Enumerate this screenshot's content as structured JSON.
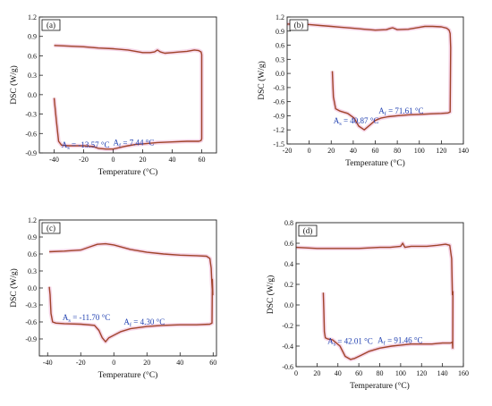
{
  "chart_data": [
    {
      "type": "line",
      "panel_label": "(a)",
      "xlabel": "Temperature (°C)",
      "ylabel": "DSC (W/g)",
      "xlim": [
        -50,
        70
      ],
      "ylim": [
        -0.9,
        1.2
      ],
      "xticks": [
        -40,
        -20,
        0,
        20,
        40,
        60
      ],
      "yticks": [
        -0.9,
        -0.6,
        -0.3,
        0.0,
        0.3,
        0.6,
        0.9,
        1.2
      ],
      "ytick_labels": [
        "-0.9",
        "-0.6",
        "-0.3",
        "0.0",
        "0.3",
        "0.6",
        "0.9",
        "1.2"
      ],
      "annotations": [
        {
          "text": "As = -13.57 °C",
          "main": "A",
          "sub": "s",
          "rest": " = -13.57 °C",
          "x": -35,
          "y": -0.82
        },
        {
          "text": "Af = 7.44 °C",
          "main": "A",
          "sub": "f",
          "rest": " = 7.44 °C",
          "x": 0,
          "y": -0.78
        }
      ],
      "series": [
        {
          "x": [
            -40,
            -38.5,
            -37,
            -35,
            -30,
            -20,
            -13.57,
            -10,
            -5,
            0,
            7.44,
            10,
            15,
            20,
            30,
            40,
            50,
            58,
            59.5,
            60,
            60,
            59.6,
            58,
            55,
            50,
            45,
            40,
            35,
            32,
            30,
            28,
            25,
            20,
            10,
            0,
            -10,
            -20,
            -30,
            -40
          ],
          "y": [
            -0.05,
            -0.4,
            -0.72,
            -0.78,
            -0.79,
            -0.79,
            -0.8,
            -0.83,
            -0.84,
            -0.84,
            -0.8,
            -0.79,
            -0.77,
            -0.76,
            -0.74,
            -0.73,
            -0.72,
            -0.72,
            -0.71,
            -0.68,
            0.62,
            0.66,
            0.68,
            0.69,
            0.67,
            0.66,
            0.65,
            0.64,
            0.66,
            0.69,
            0.66,
            0.65,
            0.65,
            0.69,
            0.71,
            0.72,
            0.74,
            0.75,
            0.76
          ]
        }
      ]
    },
    {
      "type": "line",
      "panel_label": "(b)",
      "xlabel": "Temperature (°C)",
      "ylabel": "DSC (W/g)",
      "xlim": [
        -20,
        140
      ],
      "ylim": [
        -1.5,
        1.2
      ],
      "xticks": [
        -20,
        0,
        20,
        40,
        60,
        80,
        100,
        120,
        140
      ],
      "yticks": [
        -1.5,
        -1.2,
        -0.9,
        -0.6,
        -0.3,
        0.0,
        0.3,
        0.6,
        0.9,
        1.2
      ],
      "ytick_labels": [
        "-1.5",
        "-1.2",
        "-0.9",
        "-0.6",
        "-0.3",
        "0.0",
        "0.3",
        "0.6",
        "0.9",
        "1.2"
      ],
      "annotations": [
        {
          "text": "As = 40.87 °C",
          "main": "A",
          "sub": "s",
          "rest": " = 40.87 °C",
          "x": 22,
          "y": -1.06
        },
        {
          "text": "Af = 71.61 °C",
          "main": "A",
          "sub": "f",
          "rest": " = 71.61 °C",
          "x": 63,
          "y": -0.85
        }
      ],
      "series": [
        {
          "x": [
            21,
            22,
            24,
            28,
            35,
            40.87,
            45,
            50,
            55,
            60,
            65,
            71.61,
            80,
            90,
            100,
            110,
            120,
            126,
            128,
            128.5,
            128,
            127,
            125,
            120,
            112,
            105,
            100,
            90,
            80,
            76,
            74,
            70,
            60,
            50,
            40,
            30,
            20,
            10,
            0,
            -10,
            -20
          ],
          "y": [
            0.05,
            -0.5,
            -0.75,
            -0.8,
            -0.85,
            -0.95,
            -1.12,
            -1.2,
            -1.1,
            -1.0,
            -0.95,
            -0.92,
            -0.9,
            -0.88,
            -0.87,
            -0.86,
            -0.85,
            -0.84,
            -0.82,
            0.55,
            0.85,
            0.92,
            0.96,
            0.99,
            1.0,
            1.0,
            0.98,
            0.94,
            0.93,
            0.97,
            0.96,
            0.93,
            0.92,
            0.94,
            0.96,
            0.98,
            1.0,
            1.02,
            1.04,
            1.05,
            1.05
          ]
        }
      ]
    },
    {
      "type": "line",
      "panel_label": "(c)",
      "xlabel": "Temperature (°C)",
      "ylabel": "DSC (W/g)",
      "xlim": [
        -45,
        62
      ],
      "ylim": [
        -1.2,
        1.2
      ],
      "xticks": [
        -40,
        -20,
        0,
        20,
        40,
        60
      ],
      "yticks": [
        -1.2,
        -0.9,
        -0.6,
        -0.3,
        0.0,
        0.3,
        0.6,
        0.9,
        1.2
      ],
      "ytick_labels": [
        "",
        "-0.9",
        "-0.6",
        "-0.3",
        "0.0",
        "0.3",
        "0.6",
        "0.9",
        "1.2"
      ],
      "annotations": [
        {
          "text": "As = -11.70 °C",
          "main": "A",
          "sub": "s",
          "rest": " = -11.70 °C",
          "x": -31,
          "y": -0.57
        },
        {
          "text": "Af = 4.30 °C",
          "main": "A",
          "sub": "f",
          "rest": " = 4.30 °C",
          "x": 6,
          "y": -0.65
        }
      ],
      "series": [
        {
          "x": [
            -39,
            -38.5,
            -38,
            -37,
            -35,
            -30,
            -20,
            -11.7,
            -9,
            -7,
            -5,
            -3,
            4.3,
            10,
            20,
            30,
            40,
            50,
            58,
            59.3,
            59.5,
            59.8,
            59.5,
            59.2,
            58.8,
            58,
            56,
            50,
            40,
            30,
            20,
            10,
            0,
            -5,
            -10,
            -15,
            -20,
            -30,
            -39
          ],
          "y": [
            0.02,
            -0.12,
            -0.45,
            -0.6,
            -0.62,
            -0.63,
            -0.64,
            -0.66,
            -0.75,
            -0.88,
            -0.95,
            -0.88,
            -0.77,
            -0.72,
            -0.68,
            -0.66,
            -0.65,
            -0.65,
            -0.64,
            -0.62,
            0.15,
            -0.12,
            -0.06,
            0.1,
            0.35,
            0.52,
            0.56,
            0.57,
            0.58,
            0.6,
            0.63,
            0.68,
            0.76,
            0.78,
            0.77,
            0.72,
            0.67,
            0.65,
            0.64
          ]
        }
      ]
    },
    {
      "type": "line",
      "panel_label": "(d)",
      "xlabel": "Temperature (°C)",
      "ylabel": "DSC (W/g)",
      "xlim": [
        0,
        160
      ],
      "ylim": [
        -0.6,
        0.8
      ],
      "xticks": [
        0,
        20,
        40,
        60,
        80,
        100,
        120,
        140,
        160
      ],
      "yticks": [
        -0.6,
        -0.4,
        -0.2,
        0.0,
        0.2,
        0.4,
        0.6,
        0.8
      ],
      "ytick_labels": [
        "-0.6",
        "-0.4",
        "-0.2",
        "0.0",
        "0.2",
        "0.4",
        "0.6",
        "0.8"
      ],
      "annotations": [
        {
          "text": "As = 42.01 °C",
          "main": "A",
          "sub": "s",
          "rest": " = 42.01 °C",
          "x": 30,
          "y": -0.38
        },
        {
          "text": "Af = 91.46 °C",
          "main": "A",
          "sub": "f",
          "rest": " = 91.46 °C",
          "x": 78,
          "y": -0.37
        }
      ],
      "series": [
        {
          "x": [
            26,
            26.5,
            27,
            28,
            30,
            35,
            42.01,
            47,
            52,
            56,
            62,
            70,
            80,
            91.46,
            100,
            110,
            120,
            130,
            140,
            148,
            149.5,
            149.8,
            150,
            149.5,
            148.8,
            147,
            143,
            135,
            125,
            110,
            104,
            102,
            100,
            90,
            80,
            60,
            40,
            20,
            0
          ],
          "y": [
            0.12,
            -0.05,
            -0.26,
            -0.32,
            -0.33,
            -0.34,
            -0.4,
            -0.5,
            -0.53,
            -0.52,
            -0.49,
            -0.45,
            -0.42,
            -0.4,
            -0.39,
            -0.38,
            -0.38,
            -0.38,
            -0.37,
            -0.37,
            -0.36,
            -0.42,
            0.13,
            0.1,
            0.45,
            0.58,
            0.59,
            0.58,
            0.57,
            0.57,
            0.56,
            0.6,
            0.57,
            0.56,
            0.56,
            0.55,
            0.55,
            0.55,
            0.56
          ]
        }
      ]
    }
  ]
}
